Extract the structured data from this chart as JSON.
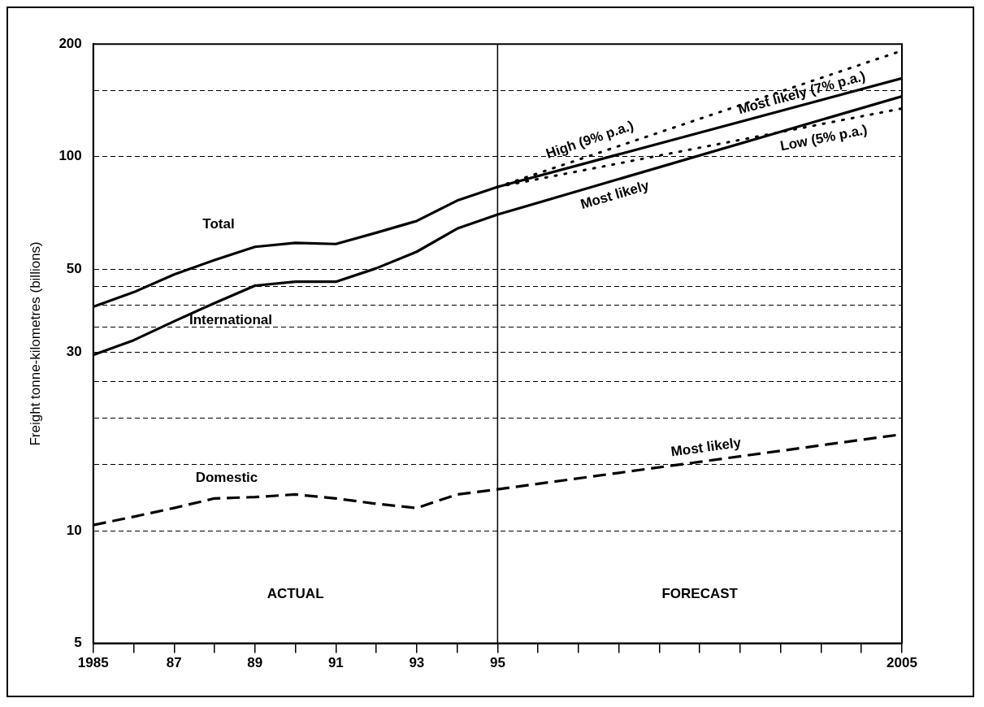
{
  "chart_data": {
    "type": "line",
    "ylabel": "Freight tonne-kilometres (billions)",
    "log": "y",
    "grid": "y",
    "legend": false,
    "marker": "none",
    "xlim": [
      1985,
      2005
    ],
    "xticks": [
      1985,
      {
        "value": 1986,
        "label": null
      },
      {
        "value": 1987,
        "label": "87"
      },
      {
        "value": 1988,
        "label": null
      },
      {
        "value": 1989,
        "label": "89"
      },
      {
        "value": 1990,
        "label": null
      },
      {
        "value": 1991,
        "label": "91"
      },
      {
        "value": 1992,
        "label": null
      },
      {
        "value": 1993,
        "label": "93"
      },
      {
        "value": 1994,
        "label": null
      },
      {
        "value": 1995,
        "label": "95"
      },
      {
        "value": 1996,
        "label": null
      },
      {
        "value": 1997,
        "label": null
      },
      {
        "value": 1998,
        "label": null
      },
      {
        "value": 1999,
        "label": null
      },
      {
        "value": 2000,
        "label": null
      },
      {
        "value": 2001,
        "label": null
      },
      {
        "value": 2002,
        "label": null
      },
      {
        "value": 2003,
        "label": null
      },
      {
        "value": 2004,
        "label": null
      },
      2005
    ],
    "ylim": [
      5,
      200
    ],
    "yticks": [
      5,
      10,
      {
        "value": 15,
        "label": null
      },
      {
        "value": 20,
        "label": null
      },
      {
        "value": 25,
        "label": null
      },
      30,
      {
        "value": 35,
        "label": null
      },
      {
        "value": 40,
        "label": null
      },
      {
        "value": 45,
        "label": null
      },
      50,
      100,
      {
        "value": 150,
        "label": null
      },
      200
    ],
    "series": [
      {
        "name": "Total",
        "color": "#000000",
        "line_style": "solid",
        "x": [
          1985,
          1986,
          1987,
          1988,
          1989,
          1990,
          1991,
          1992,
          1993,
          1994,
          1995,
          2005
        ],
        "values": [
          39.7,
          43.4,
          48.4,
          52.9,
          57.4,
          58.8,
          58.4,
          62.6,
          67.3,
          76.3,
          83,
          162
        ]
      },
      {
        "name": "International",
        "color": "#000000",
        "line_style": "solid",
        "x": [
          1985,
          1986,
          1987,
          1988,
          1989,
          1990,
          1991,
          1992,
          1993,
          1994,
          1995,
          2005
        ],
        "values": [
          29.5,
          32.3,
          36.3,
          40.6,
          45.2,
          46.3,
          46.3,
          50.3,
          55.7,
          64.2,
          70,
          145
        ]
      },
      {
        "name": "Domestic",
        "color": "#000000",
        "line_style": "dashed",
        "x": [
          1985,
          1986,
          1987,
          1988,
          1989,
          1990,
          1991,
          1992,
          1993,
          1994,
          1995,
          2005
        ],
        "values": [
          10.35,
          10.9,
          11.5,
          12.2,
          12.3,
          12.5,
          12.2,
          11.8,
          11.5,
          12.5,
          12.9,
          18.1
        ]
      },
      {
        "name": "High (9% p.a.)",
        "color": "#000000",
        "line_style": "dotted",
        "x": [
          1995,
          2005
        ],
        "values": [
          83,
          192
        ]
      },
      {
        "name": "Low (5% p.a.)",
        "color": "#000000",
        "line_style": "dotted",
        "x": [
          1995,
          2005
        ],
        "values": [
          83,
          134.5
        ]
      }
    ],
    "ref_lines": [
      {
        "axis": "x",
        "value": 1995,
        "color": "#000000",
        "line_style": "solid"
      }
    ],
    "annotations": [
      "Most likely (7% p.a.)",
      "Most likely",
      "Most likely",
      "ACTUAL",
      "FORECAST"
    ]
  }
}
